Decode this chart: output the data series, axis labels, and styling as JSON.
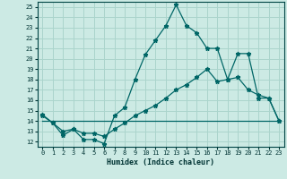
{
  "xlabel": "Humidex (Indice chaleur)",
  "background_color": "#cceae4",
  "grid_color": "#aad4cc",
  "line_color": "#006666",
  "xlim": [
    -0.5,
    23.5
  ],
  "ylim": [
    11.5,
    25.5
  ],
  "xticks": [
    0,
    1,
    2,
    3,
    4,
    5,
    6,
    7,
    8,
    9,
    10,
    11,
    12,
    13,
    14,
    15,
    16,
    17,
    18,
    19,
    20,
    21,
    22,
    23
  ],
  "yticks": [
    12,
    13,
    14,
    15,
    16,
    17,
    18,
    19,
    20,
    21,
    22,
    23,
    24,
    25
  ],
  "line1_x": [
    0,
    1,
    2,
    3,
    4,
    5,
    6,
    7,
    8,
    9,
    10,
    11,
    12,
    13,
    14,
    15,
    16,
    17,
    18,
    19,
    20,
    21,
    22,
    23
  ],
  "line1_y": [
    14.6,
    13.8,
    12.6,
    13.2,
    12.2,
    12.2,
    11.8,
    14.5,
    15.3,
    18.0,
    20.4,
    21.8,
    23.2,
    25.2,
    23.2,
    22.5,
    21.0,
    21.0,
    18.0,
    20.5,
    20.5,
    16.2,
    16.2,
    14.0
  ],
  "line2_x": [
    0,
    1,
    2,
    3,
    4,
    5,
    6,
    7,
    8,
    9,
    10,
    11,
    12,
    13,
    14,
    15,
    16,
    17,
    18,
    19,
    20,
    21,
    22,
    23
  ],
  "line2_y": [
    14.5,
    13.8,
    13.0,
    13.2,
    12.8,
    12.8,
    12.5,
    13.2,
    13.8,
    14.5,
    15.0,
    15.5,
    16.2,
    17.0,
    17.5,
    18.2,
    19.0,
    17.8,
    18.0,
    18.2,
    17.0,
    16.5,
    16.2,
    14.0
  ],
  "line3_x": [
    0,
    23
  ],
  "line3_y": [
    14.0,
    14.0
  ]
}
